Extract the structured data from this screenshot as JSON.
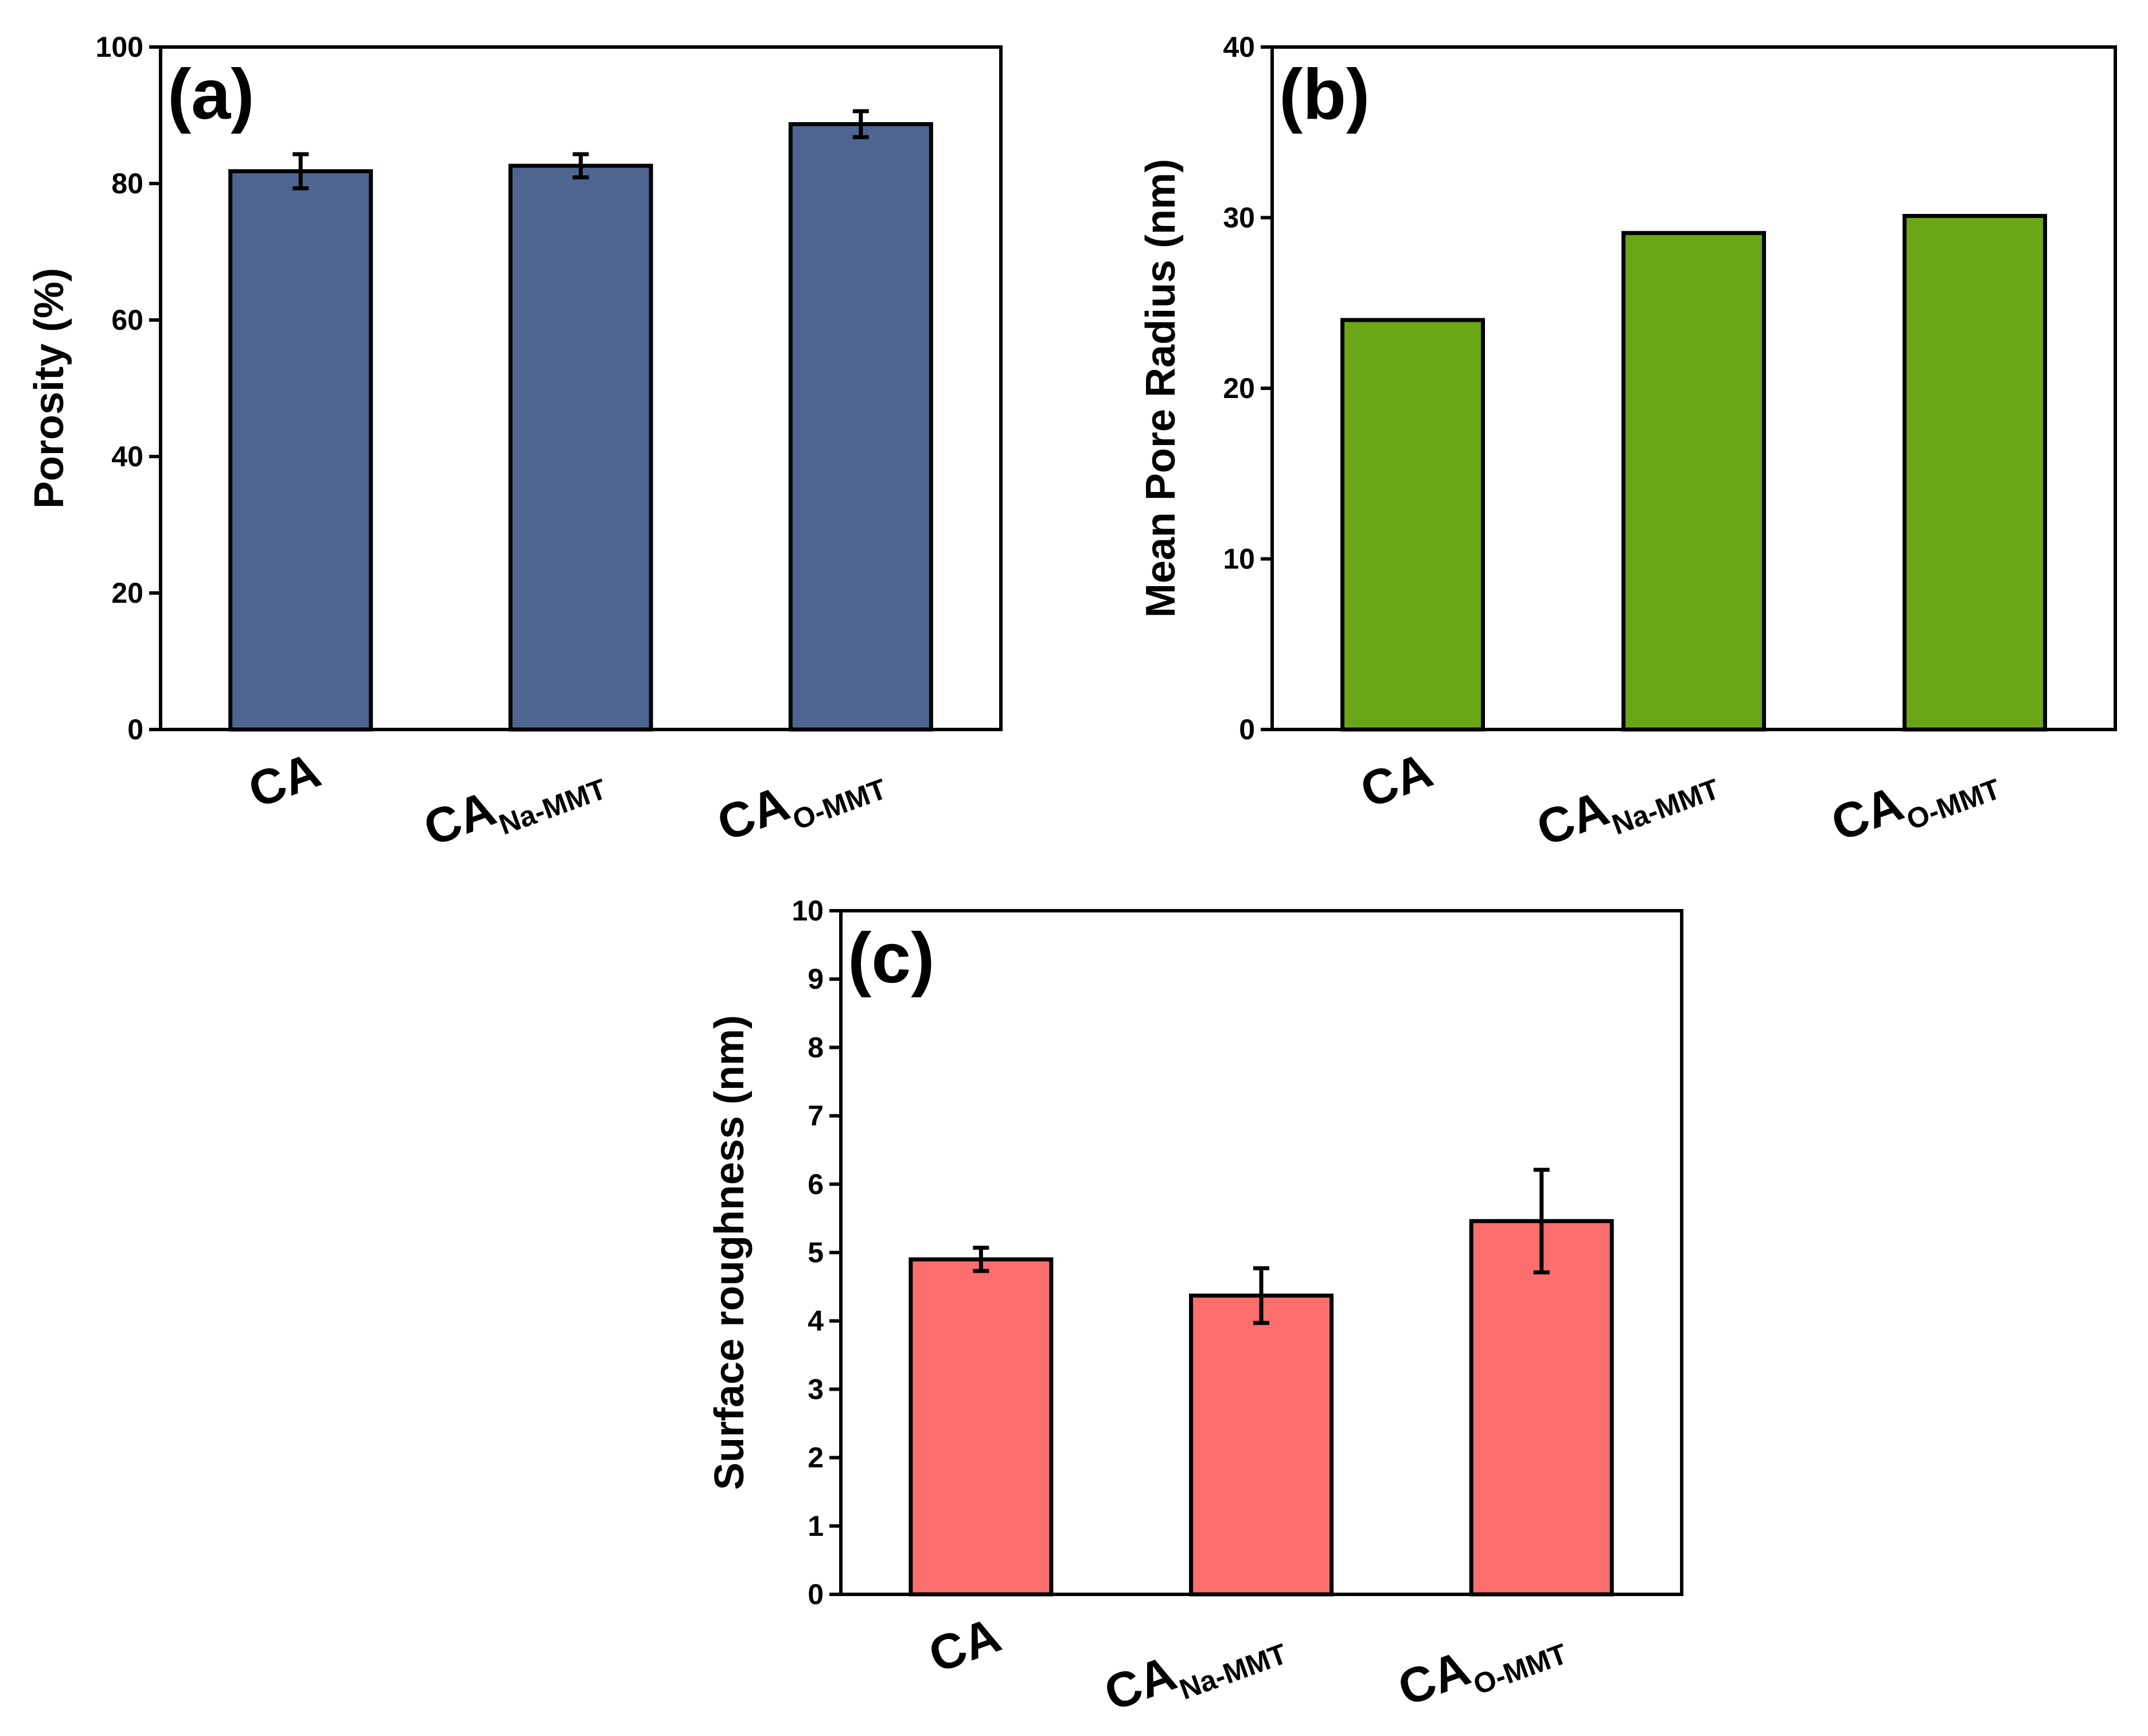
{
  "chart_data": [
    {
      "panel": "(a)",
      "type": "bar",
      "categories": [
        {
          "main": "CA",
          "sub": ""
        },
        {
          "main": "CA",
          "sub": "Na-MMT"
        },
        {
          "main": "CA",
          "sub": "O-MMT"
        }
      ],
      "values": [
        81.8,
        82.6,
        88.7
      ],
      "errors": [
        2.5,
        1.7,
        1.9
      ],
      "ylabel": "Porosity (%)",
      "xlabel": "",
      "ylim": [
        0,
        100
      ],
      "yticks": [
        0,
        20,
        40,
        60,
        80,
        100
      ],
      "color": "#4D6590"
    },
    {
      "panel": "(b)",
      "type": "bar",
      "categories": [
        {
          "main": "CA",
          "sub": ""
        },
        {
          "main": "CA",
          "sub": "Na-MMT"
        },
        {
          "main": "CA",
          "sub": "O-MMT"
        }
      ],
      "values": [
        24.0,
        29.1,
        30.1
      ],
      "errors": [
        0,
        0,
        0
      ],
      "ylabel": "Mean Pore Radius (nm)",
      "xlabel": "",
      "ylim": [
        0,
        40
      ],
      "yticks": [
        0,
        10,
        20,
        30,
        40
      ],
      "color": "#6BA616"
    },
    {
      "panel": "(c)",
      "type": "bar",
      "categories": [
        {
          "main": "CA",
          "sub": ""
        },
        {
          "main": "CA",
          "sub": "Na-MMT"
        },
        {
          "main": "CA",
          "sub": "O-MMT"
        }
      ],
      "values": [
        4.9,
        4.37,
        5.46
      ],
      "errors": [
        0.17,
        0.4,
        0.75
      ],
      "ylabel": "Surface roughness (nm)",
      "xlabel": "",
      "ylim": [
        0,
        10
      ],
      "yticks": [
        0,
        1,
        2,
        3,
        4,
        5,
        6,
        7,
        8,
        9,
        10
      ],
      "color": "#FA6E6E"
    }
  ]
}
